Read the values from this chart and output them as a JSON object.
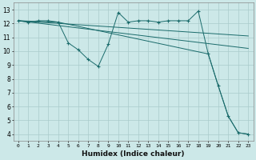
{
  "xlabel": "Humidex (Indice chaleur)",
  "bg_color": "#cce8e8",
  "grid_color": "#aacccc",
  "line_color": "#1a6b6b",
  "xlim": [
    -0.5,
    23.5
  ],
  "ylim": [
    3.5,
    13.5
  ],
  "xticks": [
    0,
    1,
    2,
    3,
    4,
    5,
    6,
    7,
    8,
    9,
    10,
    11,
    12,
    13,
    14,
    15,
    16,
    17,
    18,
    19,
    20,
    21,
    22,
    23
  ],
  "yticks": [
    4,
    5,
    6,
    7,
    8,
    9,
    10,
    11,
    12,
    13
  ],
  "series": [
    {
      "x": [
        0,
        1,
        2,
        3,
        4,
        5,
        6,
        7,
        8,
        9,
        10,
        11,
        12,
        13,
        14,
        15,
        16,
        17,
        18,
        19,
        20,
        21,
        22,
        23
      ],
      "y": [
        12.2,
        12.1,
        12.2,
        12.2,
        12.1,
        10.6,
        10.1,
        9.4,
        8.9,
        10.5,
        12.8,
        12.1,
        12.2,
        12.2,
        12.1,
        12.2,
        12.2,
        12.2,
        12.9,
        9.8,
        7.5,
        5.3,
        4.1,
        4.0
      ],
      "marker": "+"
    },
    {
      "x": [
        0,
        23
      ],
      "y": [
        12.2,
        11.1
      ],
      "marker": null
    },
    {
      "x": [
        0,
        23
      ],
      "y": [
        12.2,
        10.2
      ],
      "marker": null
    },
    {
      "x": [
        0,
        4,
        19,
        20,
        21,
        22,
        23
      ],
      "y": [
        12.2,
        12.1,
        9.8,
        7.5,
        5.3,
        4.1,
        4.0
      ],
      "marker": null
    }
  ]
}
